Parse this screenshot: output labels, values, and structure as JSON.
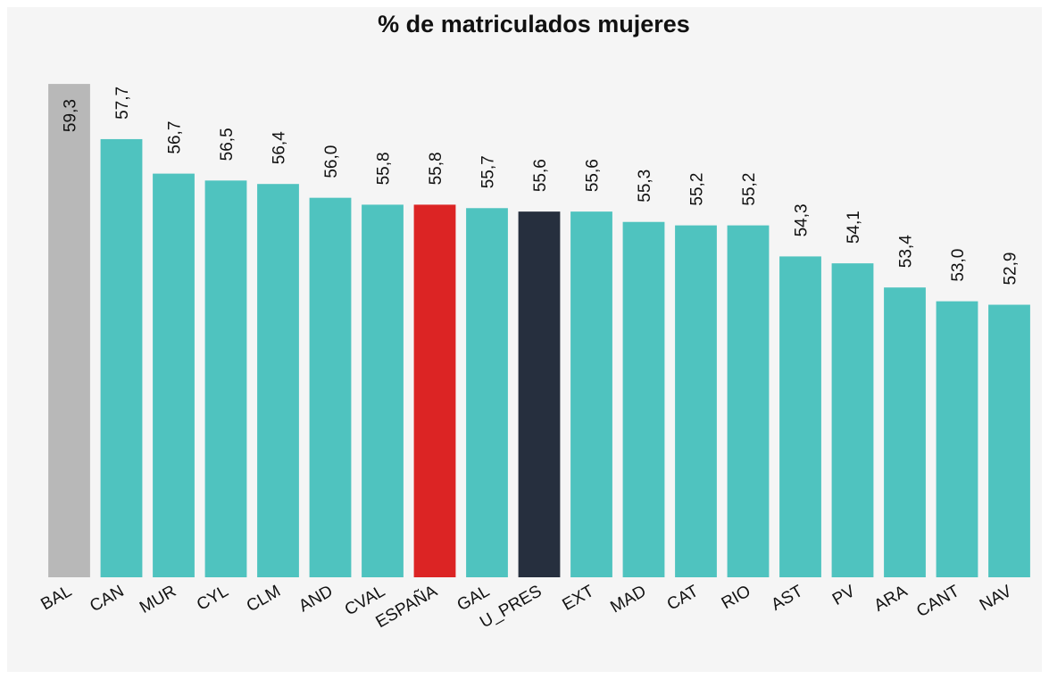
{
  "chart_data": {
    "type": "bar",
    "title": "% de matriculados mujeres",
    "categories": [
      "BAL",
      "CAN",
      "MUR",
      "CYL",
      "CLM",
      "AND",
      "CVAL",
      "ESPAÑA",
      "GAL",
      "U_PRES",
      "EXT",
      "MAD",
      "CAT",
      "RIO",
      "AST",
      "PV",
      "ARA",
      "CANT",
      "NAV"
    ],
    "values": [
      59.3,
      57.7,
      56.7,
      56.5,
      56.4,
      56.0,
      55.8,
      55.8,
      55.7,
      55.6,
      55.6,
      55.3,
      55.2,
      55.2,
      54.3,
      54.1,
      53.4,
      53.0,
      52.9
    ],
    "value_labels": [
      "59,3",
      "57,7",
      "56,7",
      "56,5",
      "56,4",
      "56,0",
      "55,8",
      "55,8",
      "55,7",
      "55,6",
      "55,6",
      "55,3",
      "55,2",
      "55,2",
      "54,3",
      "54,1",
      "53,4",
      "53,0",
      "52,9"
    ],
    "colors": [
      "#b8b8b8",
      "#4fc3bf",
      "#4fc3bf",
      "#4fc3bf",
      "#4fc3bf",
      "#4fc3bf",
      "#4fc3bf",
      "#dc2424",
      "#4fc3bf",
      "#262f3e",
      "#4fc3bf",
      "#4fc3bf",
      "#4fc3bf",
      "#4fc3bf",
      "#4fc3bf",
      "#4fc3bf",
      "#4fc3bf",
      "#4fc3bf",
      "#4fc3bf"
    ],
    "ylim": [
      45,
      60
    ]
  }
}
